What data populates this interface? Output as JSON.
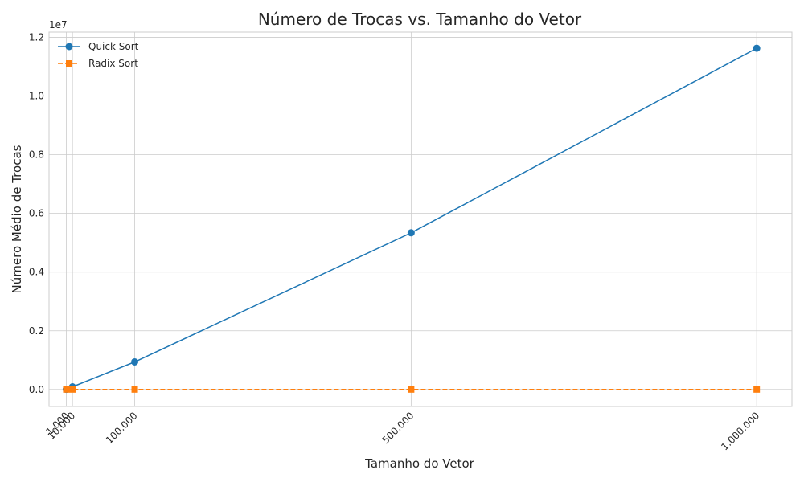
{
  "chart_data": {
    "type": "line",
    "title": "Número de Trocas vs. Tamanho do Vetor",
    "xlabel": "Tamanho do Vetor",
    "ylabel": "Número Médio de Trocas",
    "y_offset_label": "1e7",
    "x": [
      1000,
      10000,
      100000,
      500000,
      1000000
    ],
    "x_tick_labels": [
      "1.000",
      "10.000",
      "100.000",
      "500.000",
      "1.000.000"
    ],
    "y_ticks": [
      0.0,
      0.2,
      0.4,
      0.6,
      0.8,
      1.0,
      1.2
    ],
    "y_tick_labels": [
      "0.0",
      "0.2",
      "0.4",
      "0.6",
      "0.8",
      "1.0",
      "1.2"
    ],
    "y_unit_scale": 10000000,
    "xlim": [
      -23950,
      1051000
    ],
    "ylim": [
      -580000,
      12180000
    ],
    "grid": true,
    "legend_position": "top-left",
    "series": [
      {
        "name": "Quick Sort",
        "values": [
          7000,
          90000,
          940000,
          5340000,
          11630000
        ],
        "color": "#1f77b4",
        "marker": "circle",
        "line_style": "solid"
      },
      {
        "name": "Radix Sort",
        "values": [
          0,
          0,
          0,
          0,
          0
        ],
        "color": "#ff7f0e",
        "marker": "square",
        "line_style": "dashed"
      }
    ]
  }
}
